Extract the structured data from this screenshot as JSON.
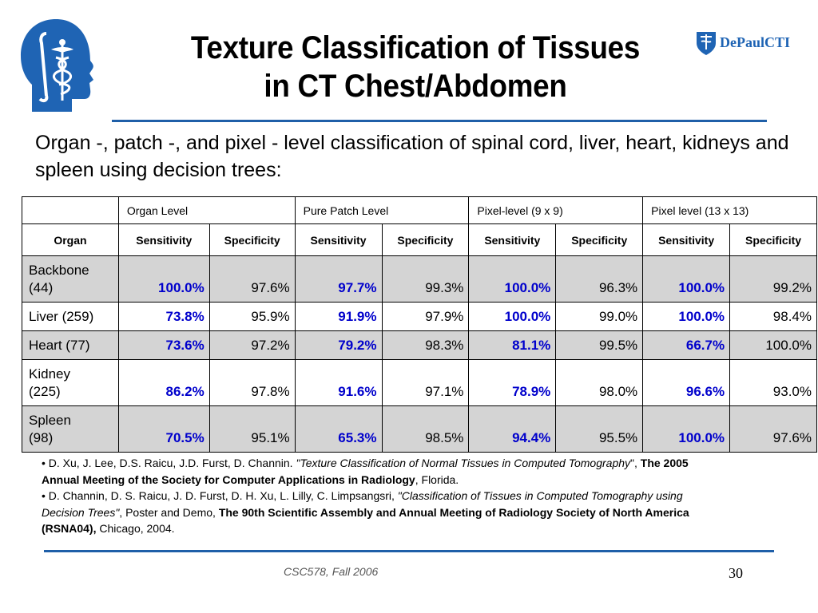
{
  "slide": {
    "title_line1": "Texture Classification of Tissues",
    "title_line2": "in CT Chest/Abdomen",
    "intro": "Organ -, patch -, and pixel - level classification of spinal cord, liver, heart, kidneys and spleen using decision trees:",
    "logo_right_text": "DePaulCTI",
    "footer": "CSC578, Fall 2006",
    "page_number": "30"
  },
  "colors": {
    "accent_rule": "#1f5fa8",
    "sensitivity_text": "#0000cc",
    "row_shade": "#d4d4d4",
    "logo_blue": "#1f64b4"
  },
  "icons": {
    "left_logo": "head-caduceus-icon",
    "right_logo": "depaul-crest-icon"
  },
  "table": {
    "group_headers": [
      "Organ Level",
      "Pure Patch Level",
      "Pixel-level (9 x 9)",
      "Pixel level (13 x 13)"
    ],
    "organ_header": "Organ",
    "sub_headers": [
      "Sensitivity",
      "Specificity",
      "Sensitivity",
      "Specificity",
      "Sensitivity",
      "Specificity",
      "Sensitivity",
      "Specificity"
    ],
    "rows": [
      {
        "organ_line1": "Backbone",
        "organ_line2": "(44)",
        "values": [
          "100.0%",
          "97.6%",
          "97.7%",
          "99.3%",
          "100.0%",
          "96.3%",
          "100.0%",
          "99.2%"
        ]
      },
      {
        "organ_line1": "Liver (259)",
        "organ_line2": "",
        "values": [
          "73.8%",
          "95.9%",
          "91.9%",
          "97.9%",
          "100.0%",
          "99.0%",
          "100.0%",
          "98.4%"
        ]
      },
      {
        "organ_line1": "Heart (77)",
        "organ_line2": "",
        "values": [
          "73.6%",
          "97.2%",
          "79.2%",
          "98.3%",
          "81.1%",
          "99.5%",
          "66.7%",
          "100.0%"
        ]
      },
      {
        "organ_line1": "Kidney",
        "organ_line2": "(225)",
        "values": [
          "86.2%",
          "97.8%",
          "91.6%",
          "97.1%",
          "78.9%",
          "98.0%",
          "96.6%",
          "93.0%"
        ]
      },
      {
        "organ_line1": "Spleen",
        "organ_line2": "(98)",
        "values": [
          "70.5%",
          "95.1%",
          "65.3%",
          "98.5%",
          "94.4%",
          "95.5%",
          "100.0%",
          "97.6%"
        ]
      }
    ]
  },
  "references": {
    "ref1": {
      "bullet": "•",
      "authors": " D. Xu, J. Lee, D.S. Raicu, J.D. Furst, D. Channin. ",
      "title": "\"Texture Classification of Normal Tissues in Computed Tomography",
      "quote_close": "\", ",
      "venue": "The 2005 Annual Meeting of the Society for Computer Applications in Radiology",
      "location": ", Florida."
    },
    "ref2": {
      "bullet": "•",
      "authors": " D. Channin, D. S. Raicu, J. D. Furst, D. H. Xu, L. Lilly, C. Limpsangsri, ",
      "title": "\"Classification of Tissues in Computed Tomography using Decision Trees\"",
      "middle": ", Poster and Demo, ",
      "venue": "The 90th Scientific Assembly and Annual Meeting of Radiology Society of North America (RSNA04),",
      "location": " Chicago, 2004."
    }
  }
}
